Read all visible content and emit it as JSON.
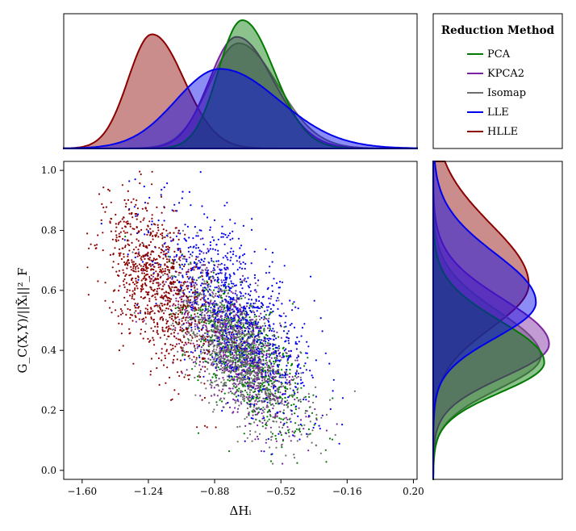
{
  "chart_data": {
    "type": "scatter",
    "xlabel": "ΔHᵢ",
    "ylabel": "G_C(X,Y)/||X̃ᵢ||²_F",
    "xlim": [
      -1.7,
      0.22
    ],
    "ylim": [
      -0.03,
      1.03
    ],
    "x_ticks": [
      "−1.60",
      "−1.24",
      "−0.88",
      "−0.52",
      "−0.16",
      "0.20"
    ],
    "x_tick_values": [
      -1.6,
      -1.24,
      -0.88,
      -0.52,
      -0.16,
      0.2
    ],
    "y_ticks": [
      "0.0",
      "0.2",
      "0.4",
      "0.6",
      "0.8",
      "1.0"
    ],
    "y_tick_values": [
      0.0,
      0.2,
      0.4,
      0.6,
      0.8,
      1.0
    ],
    "legend": {
      "title": "Reduction Method",
      "position": "top-right"
    },
    "series": [
      {
        "name": "PCA",
        "color": "#007a00",
        "x_center": -0.72,
        "x_spread": 0.16,
        "y_center": 0.38,
        "y_spread": 0.11,
        "kde_x_peak": -0.73,
        "kde_y_peak": 0.36
      },
      {
        "name": "KPCA2",
        "color": "#7b22a0",
        "x_center": -0.76,
        "x_spread": 0.17,
        "y_center": 0.41,
        "y_spread": 0.12,
        "kde_x_peak": -0.76,
        "kde_y_peak": 0.42
      },
      {
        "name": "Isomap",
        "color": "#6e6e6e",
        "x_center": -0.77,
        "x_spread": 0.18,
        "y_center": 0.4,
        "y_spread": 0.12,
        "kde_x_peak": -0.75,
        "kde_y_peak": 0.38
      },
      {
        "name": "LLE",
        "color": "#0000ee",
        "x_center": -0.76,
        "x_spread": 0.22,
        "y_center": 0.53,
        "y_spread": 0.14,
        "kde_x_peak": -0.85,
        "kde_y_peak": 0.56
      },
      {
        "name": "HLLE",
        "color": "#8b0000",
        "x_center": -1.2,
        "x_spread": 0.14,
        "y_center": 0.62,
        "y_spread": 0.14,
        "kde_x_peak": -1.22,
        "kde_y_peak": 0.62
      }
    ]
  }
}
